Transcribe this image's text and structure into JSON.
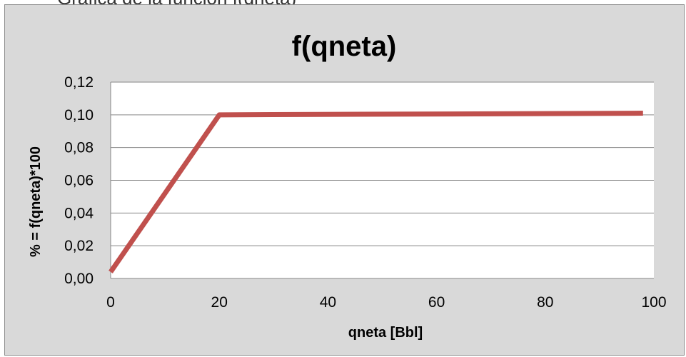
{
  "caption": "Grafica de la función f(qneta)",
  "chart_data": {
    "type": "line",
    "title": "f(qneta)",
    "xlabel": "qneta [Bbl]",
    "ylabel": "% = f(qneta)*100",
    "xlim": [
      0,
      100
    ],
    "ylim": [
      0,
      0.12
    ],
    "x_ticks": [
      "0",
      "20",
      "40",
      "60",
      "80",
      "100"
    ],
    "y_ticks": [
      "0,00",
      "0,02",
      "0,04",
      "0,06",
      "0,08",
      "0,10",
      "0,12"
    ],
    "grid": "horizontal",
    "legend": "none",
    "series": [
      {
        "x": [
          0,
          20,
          98
        ],
        "y": [
          0.004,
          0.1,
          0.101
        ],
        "color": "#c0504d"
      }
    ],
    "colors": {
      "plot_background": "#ffffff",
      "chart_background": "#d9d9d9",
      "line": "#c0504d"
    }
  }
}
